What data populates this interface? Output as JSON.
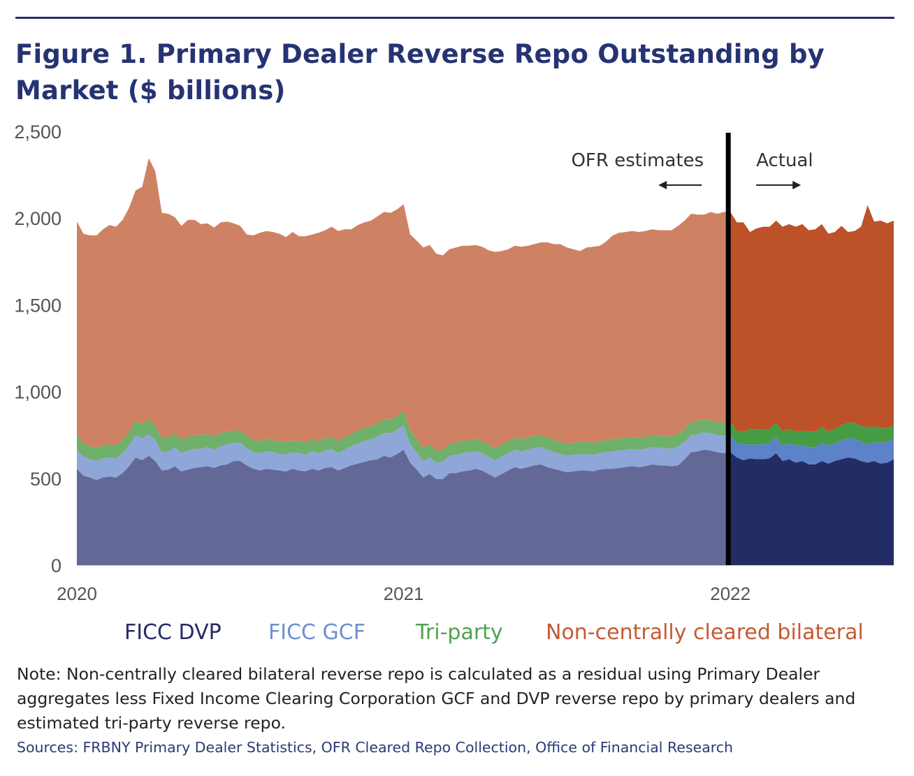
{
  "header": {
    "title_line1": "Figure 1. Primary Dealer Reverse Repo Outstanding by",
    "title_line2": "Market ($ billions)"
  },
  "legend": {
    "dvp": "FICC DVP",
    "gcf": "FICC GCF",
    "triparty": "Tri-party",
    "bilateral": "Non-centrally cleared bilateral"
  },
  "footer": {
    "note": "Note:  Non-centrally cleared bilateral reverse repo is calculated as a residual using Primary Dealer aggregates less Fixed Income Clearing Corporation GCF and DVP reverse repo by primary dealers and estimated tri-party reverse repo.",
    "sources": "Sources:  FRBNY Primary Dealer Statistics, OFR Cleared Repo Collection, Office of Financial Research"
  },
  "chart_data": {
    "type": "area",
    "stacked": true,
    "title": "Figure 1. Primary Dealer Reverse Repo Outstanding by Market ($ billions)",
    "ylim": [
      0,
      2500
    ],
    "y_ticks": [
      0,
      500,
      1000,
      1500,
      2000,
      2500
    ],
    "y_tick_labels": [
      "0",
      "500",
      "1,000",
      "1,500",
      "2,000",
      "2,500"
    ],
    "xlim": [
      2020.0,
      2022.5
    ],
    "x_ticks": [
      2020,
      2021,
      2022
    ],
    "x_tick_labels": [
      "2020",
      "2021",
      "2022"
    ],
    "divider_x": 2022.0,
    "annotations": [
      {
        "text": "OFR estimates",
        "side": "left of divider",
        "arrow": "left"
      },
      {
        "text": "Actual",
        "side": "right of divider",
        "arrow": "right"
      }
    ],
    "grid": false,
    "legend_position": "bottom",
    "colors": {
      "estimate": {
        "dvp": "#636896",
        "gcf": "#8fa6d9",
        "triparty": "#6fb06a",
        "bilateral": "#cf8263"
      },
      "actual": {
        "dvp": "#242c66",
        "gcf": "#5c82c9",
        "triparty": "#459c45",
        "bilateral": "#bd5128"
      },
      "legend_text": {
        "dvp": "#242c66",
        "gcf": "#6f8fcf",
        "triparty": "#4ea34e",
        "bilateral": "#c45a35"
      },
      "divider": "#000000"
    },
    "x": [
      2020.0,
      2020.02,
      2020.04,
      2020.06,
      2020.08,
      2020.1,
      2020.12,
      2020.14,
      2020.16,
      2020.18,
      2020.2,
      2020.22,
      2020.24,
      2020.26,
      2020.28,
      2020.3,
      2020.32,
      2020.34,
      2020.36,
      2020.38,
      2020.4,
      2020.42,
      2020.44,
      2020.46,
      2020.48,
      2020.5,
      2020.52,
      2020.54,
      2020.56,
      2020.58,
      2020.6,
      2020.62,
      2020.64,
      2020.66,
      2020.68,
      2020.7,
      2020.72,
      2020.74,
      2020.76,
      2020.78,
      2020.8,
      2020.82,
      2020.84,
      2020.86,
      2020.88,
      2020.9,
      2020.92,
      2020.94,
      2020.96,
      2020.98,
      2021.0,
      2021.02,
      2021.04,
      2021.06,
      2021.08,
      2021.1,
      2021.12,
      2021.14,
      2021.16,
      2021.18,
      2021.2,
      2021.22,
      2021.24,
      2021.26,
      2021.28,
      2021.3,
      2021.32,
      2021.34,
      2021.36,
      2021.38,
      2021.4,
      2021.42,
      2021.44,
      2021.46,
      2021.48,
      2021.5,
      2021.52,
      2021.54,
      2021.56,
      2021.58,
      2021.6,
      2021.62,
      2021.64,
      2021.66,
      2021.68,
      2021.7,
      2021.72,
      2021.74,
      2021.76,
      2021.78,
      2021.8,
      2021.82,
      2021.84,
      2021.86,
      2021.88,
      2021.9,
      2021.92,
      2021.94,
      2021.96,
      2021.98,
      2022.0,
      2022.02,
      2022.04,
      2022.06,
      2022.08,
      2022.1,
      2022.12,
      2022.14,
      2022.16,
      2022.18,
      2022.2,
      2022.22,
      2022.24,
      2022.26,
      2022.28,
      2022.3,
      2022.32,
      2022.34,
      2022.36,
      2022.38,
      2022.4,
      2022.42,
      2022.44,
      2022.46,
      2022.48,
      2022.5
    ],
    "estimate_points": 101,
    "series": [
      {
        "name": "FICC DVP",
        "values": [
          555,
          515,
          505,
          490,
          505,
          510,
          505,
          530,
          570,
          620,
          605,
          630,
          600,
          545,
          550,
          570,
          540,
          550,
          560,
          565,
          570,
          560,
          575,
          580,
          600,
          600,
          575,
          555,
          545,
          555,
          550,
          545,
          540,
          555,
          545,
          540,
          555,
          545,
          560,
          565,
          545,
          560,
          575,
          585,
          595,
          605,
          610,
          630,
          620,
          640,
          665,
          590,
          550,
          505,
          525,
          495,
          495,
          530,
          530,
          540,
          545,
          555,
          545,
          525,
          505,
          525,
          545,
          565,
          555,
          565,
          575,
          580,
          565,
          555,
          545,
          535,
          540,
          545,
          545,
          540,
          550,
          555,
          555,
          560,
          565,
          570,
          565,
          570,
          580,
          575,
          575,
          570,
          575,
          610,
          650,
          655,
          665,
          660,
          650,
          645,
          650,
          620,
          605,
          615,
          610,
          610,
          615,
          645,
          600,
          610,
          590,
          600,
          580,
          580,
          600,
          585,
          600,
          610,
          620,
          615,
          600,
          590,
          600,
          585,
          590,
          610
        ]
      },
      {
        "name": "FICC GCF",
        "values": [
          110,
          110,
          105,
          110,
          110,
          110,
          110,
          115,
          120,
          130,
          125,
          125,
          120,
          105,
          105,
          110,
          105,
          110,
          110,
          105,
          110,
          105,
          110,
          115,
          105,
          105,
          100,
          95,
          100,
          100,
          100,
          95,
          100,
          95,
          100,
          95,
          100,
          100,
          100,
          105,
          100,
          105,
          110,
          115,
          120,
          120,
          130,
          130,
          140,
          140,
          140,
          110,
          100,
          95,
          95,
          95,
          100,
          100,
          105,
          105,
          105,
          100,
          100,
          100,
          100,
          100,
          100,
          100,
          100,
          100,
          100,
          100,
          100,
          95,
          95,
          95,
          95,
          95,
          95,
          95,
          95,
          95,
          100,
          100,
          100,
          100,
          100,
          100,
          100,
          100,
          100,
          100,
          110,
          100,
          100,
          100,
          100,
          100,
          100,
          100,
          100,
          85,
          90,
          80,
          85,
          85,
          90,
          90,
          90,
          90,
          100,
          90,
          100,
          100,
          105,
          105,
          100,
          110,
          110,
          115,
          110,
          105,
          110,
          120,
          120,
          115
        ]
      },
      {
        "name": "Tri-party",
        "values": [
          90,
          75,
          75,
          75,
          75,
          75,
          75,
          75,
          80,
          85,
          80,
          85,
          85,
          80,
          80,
          80,
          80,
          80,
          80,
          80,
          75,
          75,
          75,
          75,
          70,
          70,
          70,
          70,
          70,
          70,
          70,
          70,
          70,
          70,
          70,
          70,
          70,
          70,
          70,
          70,
          70,
          70,
          70,
          75,
          75,
          75,
          75,
          80,
          80,
          80,
          85,
          80,
          75,
          75,
          75,
          70,
          70,
          70,
          70,
          70,
          70,
          70,
          70,
          70,
          70,
          70,
          70,
          70,
          70,
          70,
          70,
          70,
          70,
          70,
          70,
          70,
          70,
          70,
          70,
          70,
          70,
          70,
          70,
          70,
          70,
          70,
          70,
          70,
          70,
          70,
          70,
          70,
          70,
          75,
          75,
          75,
          75,
          75,
          75,
          75,
          75,
          70,
          75,
          90,
          90,
          85,
          80,
          85,
          80,
          85,
          80,
          85,
          90,
          90,
          90,
          80,
          85,
          85,
          90,
          90,
          90,
          100,
          90,
          85,
          80,
          80
        ]
      },
      {
        "name": "Non-centrally cleared bilateral",
        "values": [
          1225,
          1210,
          1215,
          1225,
          1245,
          1265,
          1260,
          1270,
          1290,
          1325,
          1370,
          1505,
          1465,
          1300,
          1290,
          1245,
          1230,
          1250,
          1240,
          1215,
          1215,
          1205,
          1215,
          1210,
          1195,
          1180,
          1160,
          1180,
          1200,
          1200,
          1200,
          1200,
          1180,
          1200,
          1180,
          1190,
          1180,
          1200,
          1200,
          1210,
          1210,
          1200,
          1180,
          1185,
          1185,
          1185,
          1195,
          1195,
          1190,
          1190,
          1190,
          1125,
          1145,
          1155,
          1150,
          1135,
          1120,
          1120,
          1125,
          1125,
          1120,
          1120,
          1120,
          1120,
          1130,
          1115,
          1105,
          1105,
          1110,
          1105,
          1105,
          1110,
          1125,
          1130,
          1140,
          1130,
          1115,
          1100,
          1120,
          1130,
          1125,
          1145,
          1175,
          1185,
          1185,
          1185,
          1185,
          1185,
          1185,
          1185,
          1185,
          1190,
          1200,
          1200,
          1200,
          1190,
          1180,
          1200,
          1200,
          1215,
          1210,
          1200,
          1205,
          1135,
          1155,
          1170,
          1165,
          1165,
          1180,
          1180,
          1180,
          1190,
          1160,
          1165,
          1170,
          1140,
          1135,
          1150,
          1100,
          1105,
          1150,
          1280,
          1180,
          1195,
          1180,
          1180
        ]
      }
    ]
  }
}
